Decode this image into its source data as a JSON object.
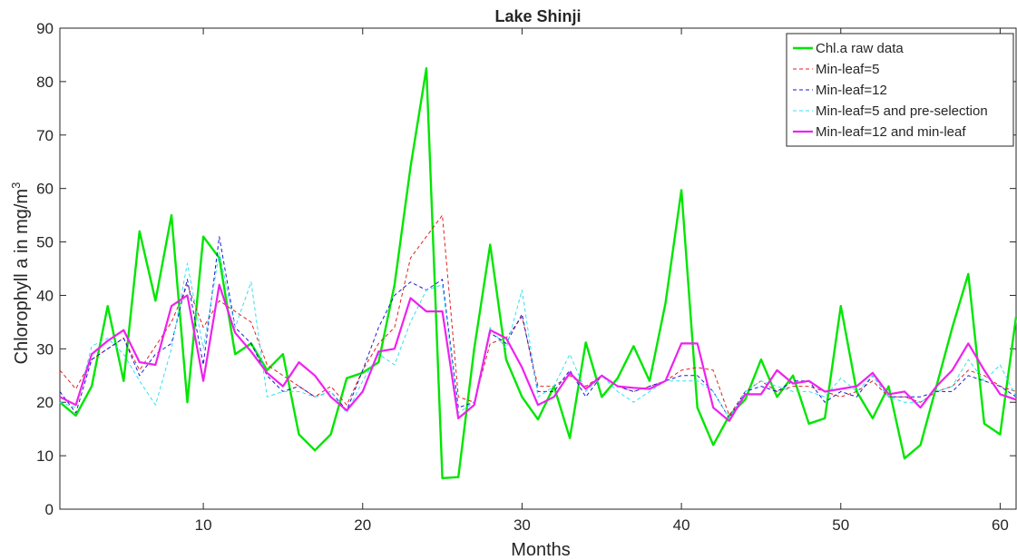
{
  "chart_data": {
    "type": "line",
    "title": "Lake Shinji",
    "xlabel": "Months",
    "ylabel_main": "Chlorophyll a in mg/m",
    "ylabel_sup": "3",
    "xlim": [
      1,
      61
    ],
    "ylim": [
      0,
      90
    ],
    "xticks": [
      10,
      20,
      30,
      40,
      50,
      60
    ],
    "yticks": [
      0,
      10,
      20,
      30,
      40,
      50,
      60,
      70,
      80,
      90
    ],
    "grid": false,
    "legend_position": "top-right",
    "series": [
      {
        "name": "Chl.a raw data",
        "color": "#00e600",
        "dash": "solid",
        "width": 2.4,
        "x": [
          1,
          2,
          3,
          4,
          5,
          6,
          7,
          8,
          9,
          10,
          11,
          12,
          13,
          14,
          15,
          16,
          17,
          18,
          19,
          20,
          21,
          22,
          23,
          24,
          25,
          26,
          27,
          28,
          29,
          30,
          31,
          32,
          33,
          34,
          35,
          36,
          37,
          38,
          39,
          40,
          41,
          42,
          43,
          44,
          45,
          46,
          47,
          48,
          49,
          50,
          51,
          52,
          53,
          54,
          55,
          56,
          57,
          58,
          59,
          60,
          61
        ],
        "y": [
          20,
          17.5,
          23,
          38,
          24,
          52,
          39,
          55,
          20,
          51,
          47,
          29,
          31,
          26,
          29,
          14,
          11,
          14,
          24.5,
          25.5,
          27.5,
          42,
          64,
          82.5,
          5.8,
          6,
          30,
          49.5,
          28,
          21,
          16.8,
          23,
          13.3,
          31.2,
          21,
          24.5,
          30.5,
          24,
          38.5,
          59.7,
          19,
          12,
          17.5,
          20.5,
          28,
          21,
          25,
          16,
          17,
          38,
          22,
          17,
          23,
          9.5,
          12,
          23,
          34,
          44,
          16,
          14,
          36
        ]
      },
      {
        "name": "Min-leaf=5",
        "color": "#e02020",
        "dash": "4,3",
        "width": 1,
        "x": [
          1,
          2,
          3,
          4,
          5,
          6,
          7,
          8,
          9,
          10,
          11,
          12,
          13,
          14,
          15,
          16,
          17,
          18,
          19,
          20,
          21,
          22,
          23,
          24,
          25,
          26,
          27,
          28,
          29,
          30,
          31,
          32,
          33,
          34,
          35,
          36,
          37,
          38,
          39,
          40,
          41,
          42,
          43,
          44,
          45,
          46,
          47,
          48,
          49,
          50,
          51,
          52,
          53,
          54,
          55,
          56,
          57,
          58,
          59,
          60,
          61
        ],
        "y": [
          26,
          22.5,
          28,
          30,
          32,
          26,
          30.5,
          35,
          42,
          34,
          39,
          37,
          35,
          27,
          25,
          23,
          21,
          23,
          19.5,
          26,
          31,
          34,
          47,
          51,
          55,
          21,
          20,
          31,
          32,
          36,
          23,
          23,
          25,
          23,
          25,
          23,
          22,
          23,
          24,
          26,
          26.5,
          26,
          17.5,
          22,
          24,
          22,
          23,
          23,
          22,
          21,
          22,
          24,
          21,
          21,
          20,
          22,
          23,
          26,
          25,
          23,
          22
        ]
      },
      {
        "name": "Min-leaf=12",
        "color": "#1a1ad4",
        "dash": "4,3",
        "width": 1,
        "x": [
          1,
          2,
          3,
          4,
          5,
          6,
          7,
          8,
          9,
          10,
          11,
          12,
          13,
          14,
          15,
          16,
          17,
          18,
          19,
          20,
          21,
          22,
          23,
          24,
          25,
          26,
          27,
          28,
          29,
          30,
          31,
          32,
          33,
          34,
          35,
          36,
          37,
          38,
          39,
          40,
          41,
          42,
          43,
          44,
          45,
          46,
          47,
          48,
          49,
          50,
          51,
          52,
          53,
          54,
          55,
          56,
          57,
          58,
          59,
          60,
          61
        ],
        "y": [
          22,
          18,
          28,
          30,
          32,
          25,
          29,
          31,
          43,
          27,
          51,
          34,
          31,
          25,
          22,
          23,
          21,
          22,
          18.5,
          26,
          34,
          40,
          42.5,
          41,
          43,
          19,
          20,
          33,
          31,
          36.5,
          22,
          22,
          26,
          21,
          25,
          23,
          22,
          23,
          24,
          25,
          25,
          22,
          17,
          22,
          23,
          22,
          24,
          24,
          20,
          22,
          21,
          25,
          21,
          21,
          21,
          22,
          22,
          25,
          24,
          23,
          21
        ]
      },
      {
        "name": "Min-leaf=5 and pre-selection",
        "color": "#33e0f0",
        "dash": "4,3",
        "width": 1,
        "x": [
          1,
          2,
          3,
          4,
          5,
          6,
          7,
          8,
          9,
          10,
          11,
          12,
          13,
          14,
          15,
          16,
          17,
          18,
          19,
          20,
          21,
          22,
          23,
          24,
          25,
          26,
          27,
          28,
          29,
          30,
          31,
          32,
          33,
          34,
          35,
          36,
          37,
          38,
          39,
          40,
          41,
          42,
          43,
          44,
          45,
          46,
          47,
          48,
          49,
          50,
          51,
          52,
          53,
          54,
          55,
          56,
          57,
          58,
          59,
          60,
          61
        ],
        "y": [
          20,
          19,
          30.5,
          32,
          29,
          24,
          19.5,
          30,
          46,
          30,
          48,
          34,
          42.5,
          21,
          22,
          22,
          21,
          22,
          18,
          24,
          29,
          27,
          35,
          41,
          42,
          18,
          20,
          34,
          30,
          41,
          21,
          23,
          29,
          22,
          25,
          22,
          20,
          22,
          24,
          24,
          24,
          22,
          17,
          22,
          24,
          23,
          22,
          22,
          21,
          24.5,
          22,
          25,
          21,
          20,
          20,
          22,
          23,
          28,
          24,
          27,
          21
        ]
      },
      {
        "name": "Min-leaf=12 and min-leaf",
        "color": "#ee22ee",
        "dash": "solid",
        "width": 2.2,
        "x": [
          1,
          2,
          3,
          4,
          5,
          6,
          7,
          8,
          9,
          10,
          11,
          12,
          13,
          14,
          15,
          16,
          17,
          18,
          19,
          20,
          21,
          22,
          23,
          24,
          25,
          26,
          27,
          28,
          29,
          30,
          31,
          32,
          33,
          34,
          35,
          36,
          37,
          38,
          39,
          40,
          41,
          42,
          43,
          44,
          45,
          46,
          47,
          48,
          49,
          50,
          51,
          52,
          53,
          54,
          55,
          56,
          57,
          58,
          59,
          60,
          61
        ],
        "y": [
          21,
          19.5,
          29,
          31.5,
          33.5,
          27.5,
          27,
          38,
          40,
          24,
          42,
          33,
          29.5,
          25.5,
          23,
          27.5,
          25,
          21,
          18.5,
          22,
          29.5,
          30,
          39.5,
          37,
          37,
          17,
          19.5,
          33.5,
          32,
          26.5,
          19.5,
          21,
          25.5,
          22.5,
          25,
          23,
          22.7,
          22.5,
          24,
          31,
          31,
          19,
          16.5,
          21.5,
          21.5,
          26,
          23.5,
          24,
          22,
          22.5,
          23,
          25.5,
          21.5,
          22,
          19,
          23,
          26,
          31,
          26,
          21.5,
          20.5
        ]
      }
    ]
  }
}
